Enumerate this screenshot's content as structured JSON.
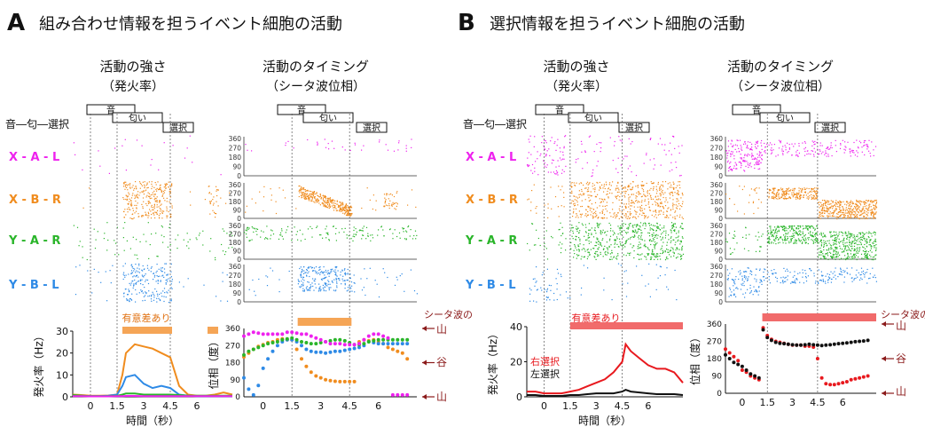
{
  "panels": {
    "A": {
      "letter": "A",
      "title": "組み合わせ情報を担うイベント細胞の活動"
    },
    "B": {
      "letter": "B",
      "title": "選択情報を担うイベント細胞の活動"
    }
  },
  "column_headers": {
    "rate_title": "活動の強さ",
    "rate_subtitle": "（発火率）",
    "phase_title": "活動のタイミング",
    "phase_subtitle": "（シータ波位相）"
  },
  "trial_legend": "音―匂―選択",
  "event_boxes": [
    "音",
    "匂い",
    "選択"
  ],
  "trial_types": [
    {
      "label": "X - A - L",
      "color": "#ee22ee"
    },
    {
      "label": "X - B - R",
      "color": "#f08c1e"
    },
    {
      "label": "Y - A - R",
      "color": "#2ab52a"
    },
    {
      "label": "Y - B - L",
      "color": "#2e8ae6"
    }
  ],
  "significance": {
    "A": {
      "label": "有意差あり",
      "color": "#f5a556"
    },
    "B": {
      "label": "有意差あり",
      "color": "#f16b6b"
    }
  },
  "theta_labels": {
    "title": "シータ波の",
    "peak": "山",
    "trough": "谷"
  },
  "legend_B": {
    "right": "右選択",
    "left": "左選択",
    "right_color": "#e8191e",
    "left_color": "#111111"
  },
  "chart_data": [
    {
      "id": "A-rate",
      "type": "line",
      "xlabel": "時間（秒）",
      "ylabel": "発火率（Hz）",
      "xticks": [
        "0",
        "1.5",
        "3",
        "4.5",
        "6"
      ],
      "yticks": [
        "0",
        "10",
        "20",
        "30"
      ],
      "ylim": [
        0,
        30
      ],
      "xlim": [
        -1,
        8
      ],
      "x": [
        -1,
        -0.5,
        0,
        0.5,
        1,
        1.5,
        1.8,
        2,
        2.5,
        3,
        3.5,
        4,
        4.5,
        5,
        5.5,
        6,
        6.5,
        7,
        7.5,
        8
      ],
      "series": [
        {
          "color": "#f08c1e",
          "values": [
            1,
            0.8,
            0.5,
            0.5,
            0.6,
            1,
            10,
            20,
            24,
            23,
            22,
            20,
            18,
            5,
            1,
            0.5,
            0.5,
            1,
            2,
            1
          ]
        },
        {
          "color": "#2e8ae6",
          "values": [
            0.5,
            0.5,
            0.3,
            0.3,
            0.5,
            1,
            5,
            9,
            10,
            6,
            4,
            5,
            4,
            1,
            0.5,
            0.3,
            0.3,
            0.3,
            0.3,
            0.3
          ]
        },
        {
          "color": "#2ab52a",
          "values": [
            0.8,
            0.5,
            0.3,
            0.3,
            0.3,
            0.5,
            1,
            1.5,
            1.5,
            1,
            1,
            1,
            1,
            0.8,
            0.5,
            0.5,
            0.5,
            0.5,
            0.5,
            0.5
          ]
        },
        {
          "color": "#ee22ee",
          "values": [
            0.3,
            0.3,
            0.2,
            0.2,
            0.2,
            0.3,
            0.3,
            0.4,
            0.4,
            0.3,
            0.3,
            0.3,
            0.3,
            0.3,
            0.3,
            0.3,
            0.3,
            0.3,
            0.3,
            0.3
          ]
        }
      ],
      "significance_intervals": [
        [
          1.8,
          4.6
        ],
        [
          6.6,
          7.2
        ]
      ]
    },
    {
      "id": "A-phase",
      "type": "scatter",
      "ylabel": "位相（度）",
      "yticks": [
        "0",
        "90",
        "180",
        "270",
        "360"
      ],
      "ylim": [
        0,
        360
      ],
      "xticks": [
        "0",
        "1.5",
        "3",
        "4.5",
        "6"
      ],
      "xlim": [
        -1,
        8
      ],
      "x": [
        -1,
        -0.75,
        -0.5,
        -0.25,
        0,
        0.25,
        0.5,
        0.75,
        1,
        1.25,
        1.5,
        1.75,
        2,
        2.25,
        2.5,
        2.75,
        3,
        3.25,
        3.5,
        3.75,
        4,
        4.25,
        4.5,
        4.75,
        5,
        5.25,
        5.5,
        5.75,
        6,
        6.25,
        6.5,
        6.75,
        7,
        7.25,
        7.5
      ],
      "series": [
        {
          "color": "#f08c1e",
          "values": [
            210,
            230,
            250,
            265,
            275,
            285,
            290,
            300,
            305,
            300,
            300,
            250,
            200,
            160,
            130,
            110,
            100,
            90,
            85,
            82,
            80,
            80,
            80,
            80,
            290,
            300,
            295,
            300,
            290,
            280,
            260,
            250,
            240,
            230,
            200
          ]
        },
        {
          "color": "#2e8ae6",
          "values": [
            100,
            40,
            10,
            60,
            150,
            200,
            240,
            270,
            290,
            300,
            300,
            290,
            270,
            250,
            240,
            235,
            235,
            230,
            235,
            240,
            240,
            245,
            250,
            255,
            260,
            270,
            290,
            285,
            280,
            280,
            280,
            280,
            280,
            280,
            280
          ]
        },
        {
          "color": "#2ab52a",
          "values": [
            220,
            240,
            250,
            260,
            270,
            280,
            285,
            290,
            300,
            305,
            310,
            300,
            290,
            285,
            280,
            280,
            285,
            290,
            295,
            300,
            300,
            295,
            285,
            275,
            275,
            280,
            290,
            295,
            300,
            300,
            300,
            300,
            300,
            300,
            300
          ]
        },
        {
          "color": "#ee22ee",
          "values": [
            320,
            330,
            340,
            335,
            330,
            330,
            330,
            330,
            330,
            340,
            340,
            335,
            330,
            330,
            320,
            310,
            300,
            290,
            280,
            280,
            280,
            275,
            275,
            275,
            280,
            300,
            320,
            330,
            330,
            320,
            310,
            10,
            10,
            10,
            10
          ]
        }
      ],
      "significance_intervals": [
        [
          1.8,
          4.6
        ]
      ]
    },
    {
      "id": "B-rate",
      "type": "line",
      "xlabel": "時間（秒）",
      "ylabel": "発火率（Hz）",
      "xticks": [
        "0",
        "1.5",
        "3",
        "4.5",
        "6"
      ],
      "yticks": [
        "0",
        "20",
        "40"
      ],
      "ylim": [
        0,
        40
      ],
      "xlim": [
        -1,
        8
      ],
      "x": [
        -1,
        -0.5,
        0,
        0.5,
        1,
        1.5,
        2,
        2.5,
        3,
        3.5,
        4,
        4.5,
        4.7,
        5,
        5.5,
        6,
        6.5,
        7,
        7.5,
        8
      ],
      "series": [
        {
          "name": "右選択",
          "color": "#e8191e",
          "values": [
            3,
            3,
            2,
            2,
            2,
            3,
            4,
            6,
            8,
            10,
            14,
            20,
            30,
            26,
            22,
            18,
            16,
            16,
            14,
            8
          ]
        },
        {
          "name": "左選択",
          "color": "#111111",
          "values": [
            1,
            1,
            0.5,
            0.5,
            0.5,
            1,
            1,
            1.5,
            2,
            2,
            2,
            3,
            4,
            3,
            2.5,
            2,
            1.5,
            1.5,
            1.5,
            1
          ]
        }
      ],
      "significance_intervals": [
        [
          1.5,
          8
        ]
      ]
    },
    {
      "id": "B-phase",
      "type": "scatter",
      "ylabel": "位相（度）",
      "yticks": [
        "0",
        "90",
        "180",
        "270",
        "360"
      ],
      "ylim": [
        0,
        360
      ],
      "xticks": [
        "0",
        "1.5",
        "3",
        "4.5",
        "6"
      ],
      "xlim": [
        -1,
        8
      ],
      "x": [
        -1,
        -0.75,
        -0.5,
        -0.25,
        0,
        0.25,
        0.5,
        0.75,
        1,
        1.25,
        1.5,
        1.75,
        2,
        2.25,
        2.5,
        2.75,
        3,
        3.25,
        3.5,
        3.75,
        4,
        4.25,
        4.5,
        4.75,
        5,
        5.25,
        5.5,
        5.75,
        6,
        6.25,
        6.5,
        6.75,
        7,
        7.25,
        7.5
      ],
      "series": [
        {
          "name": "右選択",
          "color": "#e8191e",
          "values": [
            230,
            210,
            190,
            170,
            120,
            110,
            90,
            80,
            70,
            340,
            300,
            280,
            270,
            265,
            260,
            255,
            250,
            250,
            250,
            245,
            245,
            240,
            180,
            80,
            50,
            45,
            45,
            50,
            55,
            60,
            70,
            75,
            80,
            85,
            90
          ]
        },
        {
          "name": "左選択",
          "color": "#111111",
          "values": [
            200,
            180,
            160,
            150,
            140,
            120,
            100,
            90,
            80,
            330,
            290,
            275,
            265,
            260,
            258,
            255,
            252,
            250,
            250,
            252,
            255,
            252,
            250,
            248,
            250,
            252,
            255,
            258,
            260,
            262,
            265,
            268,
            270,
            272,
            275
          ]
        }
      ],
      "significance_intervals": [
        [
          1.2,
          8
        ]
      ]
    }
  ]
}
